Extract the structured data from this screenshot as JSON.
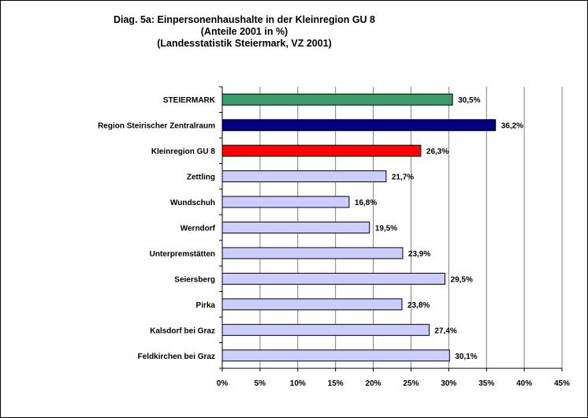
{
  "chart_data": {
    "type": "bar",
    "orientation": "horizontal",
    "title": "Diag. 5a: Einpersonenhaushalte  in der Kleinregion GU 8",
    "subtitle": "(Anteile 2001 in %)",
    "source_line": "(Landesstatistik  Steiermark,  VZ 2001)",
    "categories": [
      "STEIERMARK",
      "Region Steirischer Zentralraum",
      "Kleinregion GU 8",
      "Zettling",
      "Wundschuh",
      "Werndorf",
      "Unterpremstätten",
      "Seiersberg",
      "Pirka",
      "Kalsdorf bei Graz",
      "Feldkirchen bei Graz"
    ],
    "values": [
      30.5,
      36.2,
      26.3,
      21.7,
      16.8,
      19.5,
      23.9,
      29.5,
      23.8,
      27.4,
      30.1
    ],
    "value_labels": [
      "30,5%",
      "36,2%",
      "26,3%",
      "21,7%",
      "16,8%",
      "19,5%",
      "23,9%",
      "29,5%",
      "23,8%",
      "27,4%",
      "30,1%"
    ],
    "bar_colors": [
      "#3a9a6a",
      "#000080",
      "#ff0000",
      "#ccccff",
      "#ccccff",
      "#ccccff",
      "#ccccff",
      "#ccccff",
      "#ccccff",
      "#ccccff",
      "#ccccff"
    ],
    "xlim": [
      0,
      45
    ],
    "xticks": [
      0,
      5,
      10,
      15,
      20,
      25,
      30,
      35,
      40,
      45
    ],
    "xtick_labels": [
      "0%",
      "5%",
      "10%",
      "15%",
      "20%",
      "25%",
      "30%",
      "35%",
      "40%",
      "45%"
    ],
    "grid": "vertical",
    "legend": "none"
  }
}
